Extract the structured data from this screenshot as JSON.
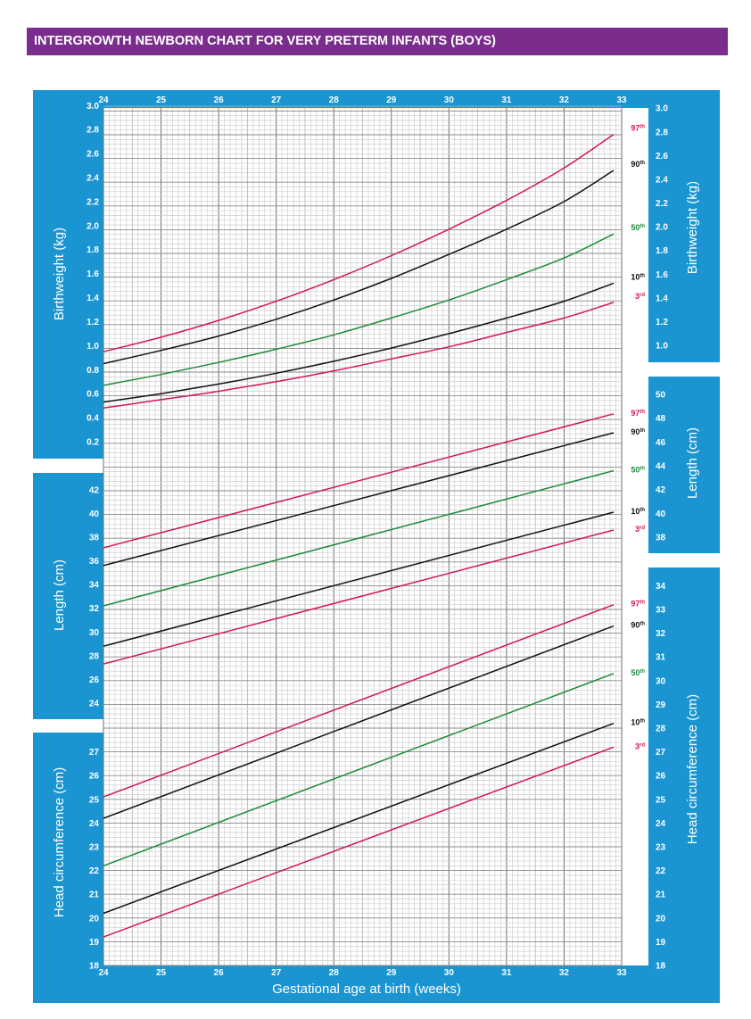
{
  "title": "INTERGROWTH NEWBORN CHART FOR VERY PRETERM INFANTS (BOYS)",
  "colors": {
    "header": "#7a2d8c",
    "panel": "#1a95d2",
    "red": "#d3184f",
    "black": "#111111",
    "green": "#1e8a3c"
  },
  "chart_data": {
    "type": "line",
    "xlabel": "Gestational age at birth (weeks)",
    "x_ticks": [
      "24",
      "25",
      "26",
      "27",
      "28",
      "29",
      "30",
      "31",
      "32",
      "33"
    ],
    "xlim": [
      24,
      33
    ],
    "grid": true,
    "panels": [
      {
        "name": "birthweight",
        "ylabel": "Birthweight (kg)",
        "ylim": [
          0,
          3.0
        ],
        "left_ticks": [
          "0.2",
          "0.4",
          "0.6",
          "0.8",
          "1.0",
          "1.2",
          "1.4",
          "1.6",
          "1.8",
          "2.0",
          "2.2",
          "2.4",
          "2.6",
          "2.8",
          "3.0"
        ],
        "left_tick_values": [
          0.2,
          0.4,
          0.6,
          0.8,
          1.0,
          1.2,
          1.4,
          1.6,
          1.8,
          2.0,
          2.2,
          2.4,
          2.6,
          2.8,
          3.0
        ],
        "right_ticks": [
          "1.0",
          "1.2",
          "1.4",
          "1.6",
          "1.8",
          "2.0",
          "2.2",
          "2.4",
          "2.6",
          "2.8",
          "3.0"
        ],
        "right_tick_values": [
          1.0,
          1.2,
          1.4,
          1.6,
          1.8,
          2.0,
          2.2,
          2.4,
          2.6,
          2.8,
          3.0
        ],
        "series": [
          {
            "name": "97th",
            "label_main": "97",
            "label_sup": "th",
            "color": "red",
            "x": [
              24,
              25,
              26,
              27,
              28,
              29,
              30,
              31,
              32,
              32.86
            ],
            "y": [
              0.95,
              1.07,
              1.21,
              1.37,
              1.55,
              1.75,
              1.97,
              2.21,
              2.48,
              2.76
            ]
          },
          {
            "name": "90th",
            "label_main": "90",
            "label_sup": "th",
            "color": "black",
            "x": [
              24,
              25,
              26,
              27,
              28,
              29,
              30,
              31,
              32,
              32.86
            ],
            "y": [
              0.85,
              0.96,
              1.08,
              1.22,
              1.38,
              1.56,
              1.76,
              1.97,
              2.2,
              2.46
            ]
          },
          {
            "name": "50th",
            "label_main": "50",
            "label_sup": "th",
            "color": "green",
            "x": [
              24,
              25,
              26,
              27,
              28,
              29,
              30,
              31,
              32,
              32.86
            ],
            "y": [
              0.67,
              0.76,
              0.86,
              0.97,
              1.09,
              1.23,
              1.38,
              1.55,
              1.73,
              1.93
            ]
          },
          {
            "name": "10th",
            "label_main": "10",
            "label_sup": "th",
            "color": "black",
            "x": [
              24,
              25,
              26,
              27,
              28,
              29,
              30,
              31,
              32,
              32.86
            ],
            "y": [
              0.53,
              0.6,
              0.68,
              0.77,
              0.87,
              0.98,
              1.1,
              1.23,
              1.37,
              1.52
            ]
          },
          {
            "name": "3rd",
            "label_main": "3",
            "label_sup": "rd",
            "color": "red",
            "x": [
              24,
              25,
              26,
              27,
              28,
              29,
              30,
              31,
              32,
              32.86
            ],
            "y": [
              0.48,
              0.55,
              0.62,
              0.7,
              0.79,
              0.89,
              0.99,
              1.11,
              1.23,
              1.36
            ]
          }
        ]
      },
      {
        "name": "length",
        "ylabel": "Length (cm)",
        "left_ticks": [
          "24",
          "26",
          "28",
          "30",
          "32",
          "34",
          "36",
          "38",
          "40",
          "42"
        ],
        "left_tick_values": [
          24,
          26,
          28,
          30,
          32,
          34,
          36,
          38,
          40,
          42
        ],
        "right_ticks": [
          "38",
          "40",
          "42",
          "44",
          "46",
          "48",
          "50"
        ],
        "right_tick_values": [
          38,
          40,
          42,
          44,
          46,
          48,
          50
        ],
        "series": [
          {
            "name": "97th",
            "label_main": "97",
            "label_sup": "th",
            "color": "red",
            "x": [
              24,
              32.86
            ],
            "y": [
              37.1,
              48.4
            ]
          },
          {
            "name": "90th",
            "label_main": "90",
            "label_sup": "th",
            "color": "black",
            "x": [
              24,
              32.86
            ],
            "y": [
              35.6,
              46.8
            ]
          },
          {
            "name": "50th",
            "label_main": "50",
            "label_sup": "th",
            "color": "green",
            "x": [
              24,
              32.86
            ],
            "y": [
              32.2,
              43.6
            ]
          },
          {
            "name": "10th",
            "label_main": "10",
            "label_sup": "th",
            "color": "black",
            "x": [
              24,
              32.86
            ],
            "y": [
              28.8,
              40.1
            ]
          },
          {
            "name": "3rd",
            "label_main": "3",
            "label_sup": "rd",
            "color": "red",
            "x": [
              24,
              32.86
            ],
            "y": [
              27.3,
              38.6
            ]
          }
        ]
      },
      {
        "name": "head_circumference",
        "ylabel": "Head circumference (cm)",
        "left_ticks": [
          "18",
          "19",
          "20",
          "21",
          "22",
          "23",
          "24",
          "25",
          "26",
          "27"
        ],
        "left_tick_values": [
          18,
          19,
          20,
          21,
          22,
          23,
          24,
          25,
          26,
          27
        ],
        "right_ticks": [
          "18",
          "19",
          "20",
          "21",
          "22",
          "23",
          "24",
          "25",
          "26",
          "27",
          "28",
          "29",
          "30",
          "31",
          "32",
          "33",
          "34"
        ],
        "right_tick_values": [
          18,
          19,
          20,
          21,
          22,
          23,
          24,
          25,
          26,
          27,
          28,
          29,
          30,
          31,
          32,
          33,
          34
        ],
        "series": [
          {
            "name": "97th",
            "label_main": "97",
            "label_sup": "th",
            "color": "red",
            "x": [
              24,
              32.86
            ],
            "y": [
              25.1,
              33.2
            ]
          },
          {
            "name": "90th",
            "label_main": "90",
            "label_sup": "th",
            "color": "black",
            "x": [
              24,
              32.86
            ],
            "y": [
              24.2,
              32.3
            ]
          },
          {
            "name": "50th",
            "label_main": "50",
            "label_sup": "th",
            "color": "green",
            "x": [
              24,
              32.86
            ],
            "y": [
              22.2,
              30.3
            ]
          },
          {
            "name": "10th",
            "label_main": "10",
            "label_sup": "th",
            "color": "black",
            "x": [
              24,
              32.86
            ],
            "y": [
              20.2,
              28.2
            ]
          },
          {
            "name": "3rd",
            "label_main": "3",
            "label_sup": "rd",
            "color": "red",
            "x": [
              24,
              32.86
            ],
            "y": [
              19.2,
              27.2
            ]
          }
        ]
      }
    ]
  }
}
